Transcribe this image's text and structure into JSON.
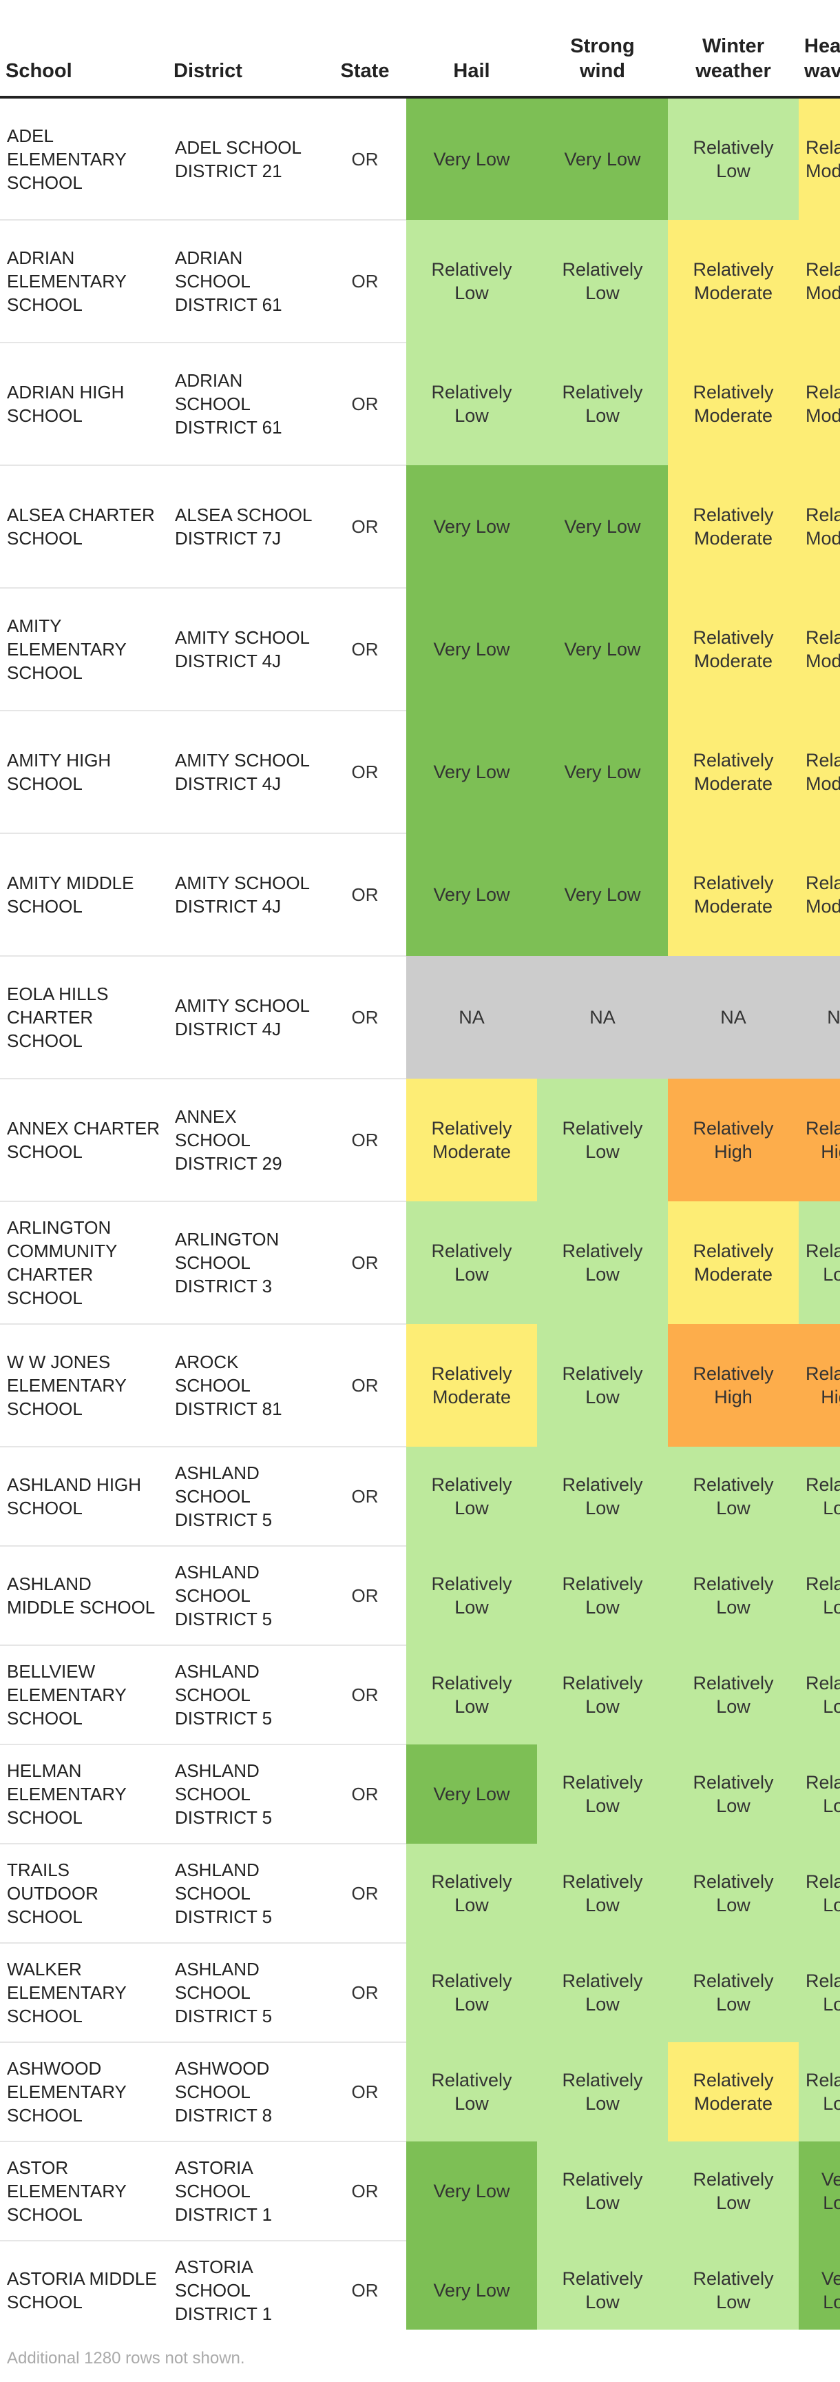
{
  "columns": [
    "School",
    "District",
    "State",
    "Hail",
    "Strong wind",
    "Winter weather",
    "Heat wave"
  ],
  "header_lines": {
    "strong_wind": [
      "Strong",
      "wind"
    ],
    "winter_weather": [
      "Winter",
      "weather"
    ]
  },
  "risk_colors": {
    "Very Low": "#7dbf55",
    "Relatively Low": "#bde99c",
    "Relatively Moderate": "#fded75",
    "Relatively High": "#fdad4b",
    "NA": "#cccccc"
  },
  "rows": [
    {
      "school": "ADEL ELEMENTARY SCHOOL",
      "district": "ADEL SCHOOL DISTRICT 21",
      "state": "OR",
      "hail": "Very Low",
      "wind": "Very Low",
      "winter": "Relatively Low",
      "heat": "Relatively Moderate"
    },
    {
      "school": "ADRIAN ELEMENTARY SCHOOL",
      "district": "ADRIAN SCHOOL DISTRICT 61",
      "state": "OR",
      "hail": "Relatively Low",
      "wind": "Relatively Low",
      "winter": "Relatively Moderate",
      "heat": "Relatively Moderate"
    },
    {
      "school": "ADRIAN HIGH SCHOOL",
      "district": "ADRIAN SCHOOL DISTRICT 61",
      "state": "OR",
      "hail": "Relatively Low",
      "wind": "Relatively Low",
      "winter": "Relatively Moderate",
      "heat": "Relatively Moderate"
    },
    {
      "school": "ALSEA CHARTER SCHOOL",
      "district": "ALSEA SCHOOL DISTRICT 7J",
      "state": "OR",
      "hail": "Very Low",
      "wind": "Very Low",
      "winter": "Relatively Moderate",
      "heat": "Relatively Moderate"
    },
    {
      "school": "AMITY ELEMENTARY SCHOOL",
      "district": "AMITY SCHOOL DISTRICT 4J",
      "state": "OR",
      "hail": "Very Low",
      "wind": "Very Low",
      "winter": "Relatively Moderate",
      "heat": "Relatively Moderate"
    },
    {
      "school": "AMITY HIGH SCHOOL",
      "district": "AMITY SCHOOL DISTRICT 4J",
      "state": "OR",
      "hail": "Very Low",
      "wind": "Very Low",
      "winter": "Relatively Moderate",
      "heat": "Relatively Moderate"
    },
    {
      "school": "AMITY MIDDLE SCHOOL",
      "district": "AMITY SCHOOL DISTRICT 4J",
      "state": "OR",
      "hail": "Very Low",
      "wind": "Very Low",
      "winter": "Relatively Moderate",
      "heat": "Relatively Moderate"
    },
    {
      "school": "EOLA HILLS CHARTER SCHOOL",
      "district": "AMITY SCHOOL DISTRICT 4J",
      "state": "OR",
      "hail": "NA",
      "wind": "NA",
      "winter": "NA",
      "heat": "NA"
    },
    {
      "school": "ANNEX CHARTER SCHOOL",
      "district": "ANNEX SCHOOL DISTRICT 29",
      "state": "OR",
      "hail": "Relatively Moderate",
      "wind": "Relatively Low",
      "winter": "Relatively High",
      "heat": "Relatively High"
    },
    {
      "school": "ARLINGTON COMMUNITY CHARTER SCHOOL",
      "district": "ARLINGTON SCHOOL DISTRICT 3",
      "state": "OR",
      "hail": "Relatively Low",
      "wind": "Relatively Low",
      "winter": "Relatively Moderate",
      "heat": "Relatively Low"
    },
    {
      "school": "W W JONES ELEMENTARY SCHOOL",
      "district": "AROCK SCHOOL DISTRICT 81",
      "state": "OR",
      "hail": "Relatively Moderate",
      "wind": "Relatively Low",
      "winter": "Relatively High",
      "heat": "Relatively High"
    },
    {
      "school": "ASHLAND HIGH SCHOOL",
      "district": "ASHLAND SCHOOL DISTRICT 5",
      "state": "OR",
      "hail": "Relatively Low",
      "wind": "Relatively Low",
      "winter": "Relatively Low",
      "heat": "Relatively Low"
    },
    {
      "school": "ASHLAND MIDDLE SCHOOL",
      "district": "ASHLAND SCHOOL DISTRICT 5",
      "state": "OR",
      "hail": "Relatively Low",
      "wind": "Relatively Low",
      "winter": "Relatively Low",
      "heat": "Relatively Low"
    },
    {
      "school": "BELLVIEW ELEMENTARY SCHOOL",
      "district": "ASHLAND SCHOOL DISTRICT 5",
      "state": "OR",
      "hail": "Relatively Low",
      "wind": "Relatively Low",
      "winter": "Relatively Low",
      "heat": "Relatively Low"
    },
    {
      "school": "HELMAN ELEMENTARY SCHOOL",
      "district": "ASHLAND SCHOOL DISTRICT 5",
      "state": "OR",
      "hail": "Very Low",
      "wind": "Relatively Low",
      "winter": "Relatively Low",
      "heat": "Relatively Low"
    },
    {
      "school": "TRAILS OUTDOOR SCHOOL",
      "district": "ASHLAND SCHOOL DISTRICT 5",
      "state": "OR",
      "hail": "Relatively Low",
      "wind": "Relatively Low",
      "winter": "Relatively Low",
      "heat": "Relatively Low"
    },
    {
      "school": "WALKER ELEMENTARY SCHOOL",
      "district": "ASHLAND SCHOOL DISTRICT 5",
      "state": "OR",
      "hail": "Relatively Low",
      "wind": "Relatively Low",
      "winter": "Relatively Low",
      "heat": "Relatively Low"
    },
    {
      "school": "ASHWOOD ELEMENTARY SCHOOL",
      "district": "ASHWOOD SCHOOL DISTRICT 8",
      "state": "OR",
      "hail": "Relatively Low",
      "wind": "Relatively Low",
      "winter": "Relatively Moderate",
      "heat": "Relatively Low"
    },
    {
      "school": "ASTOR ELEMENTARY SCHOOL",
      "district": "ASTORIA SCHOOL DISTRICT 1",
      "state": "OR",
      "hail": "Very Low",
      "wind": "Relatively Low",
      "winter": "Relatively Low",
      "heat": "Very Low"
    },
    {
      "school": "ASTORIA MIDDLE SCHOOL",
      "district": "ASTORIA SCHOOL DISTRICT 1",
      "state": "OR",
      "hail": "Very Low",
      "wind": "Relatively Low",
      "winter": "Relatively Low",
      "heat": "Very Low"
    }
  ],
  "footer_note": "Additional 1280 rows not shown."
}
